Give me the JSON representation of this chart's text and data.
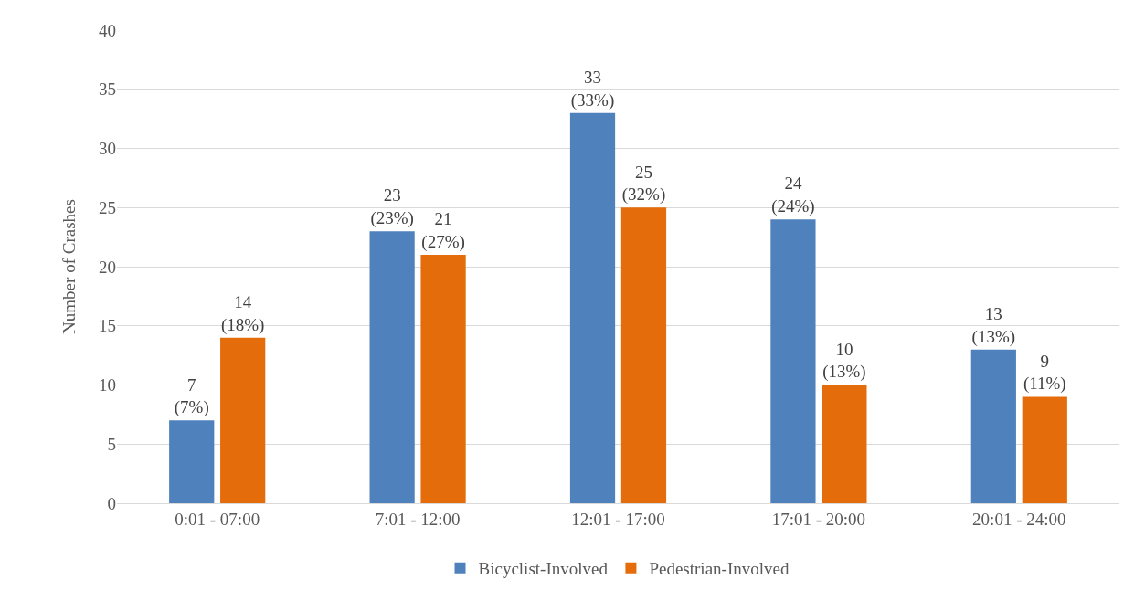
{
  "chart_data": {
    "type": "bar",
    "ylabel": "Number of Crashes",
    "categories": [
      "0:01 - 07:00",
      "7:01 - 12:00",
      "12:01 - 17:00",
      "17:01 - 20:00",
      "20:01 - 24:00"
    ],
    "series": [
      {
        "name": "Bicyclist-Involved",
        "color": "#4f81bd",
        "values": [
          7,
          23,
          33,
          24,
          13
        ],
        "value_labels": [
          "7\n(7%)",
          "23\n(23%)",
          "33\n(33%)",
          "24\n(24%)",
          "13\n(13%)"
        ]
      },
      {
        "name": "Pedestrian-Involved",
        "color": "#e46c0a",
        "values": [
          14,
          21,
          25,
          10,
          9
        ],
        "value_labels": [
          "14\n(18%)",
          "21\n(27%)",
          "25\n(32%)",
          "10\n(13%)",
          "9\n(11%)"
        ]
      }
    ],
    "ylim": [
      0,
      40
    ],
    "yticks": [
      0,
      5,
      10,
      15,
      20,
      25,
      30,
      35,
      40
    ],
    "grid": "y",
    "legend": "bottom"
  }
}
